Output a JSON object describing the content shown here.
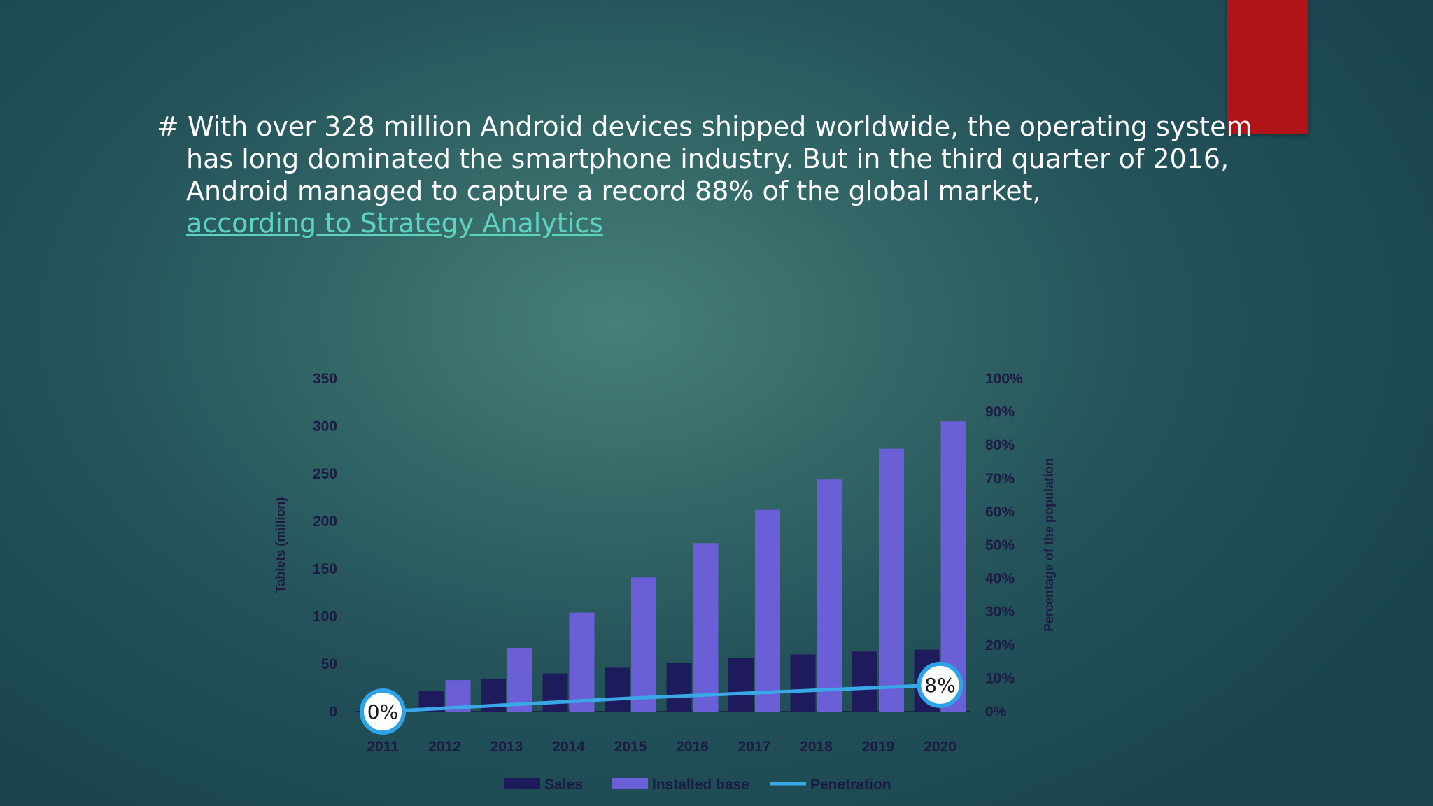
{
  "slide": {
    "bullet": "#",
    "lines": [
      "With over 328 million Android devices shipped worldwide, the operating system",
      "has long dominated the smartphone industry. But in the third quarter of 2016,",
      "Android managed to capture a record 88% of the global market,"
    ],
    "link_text": "according to Strategy Analytics",
    "accent_color": "#b01318"
  },
  "chart_data": {
    "type": "bar",
    "categories": [
      "2011",
      "2012",
      "2013",
      "2014",
      "2015",
      "2016",
      "2017",
      "2018",
      "2019",
      "2020"
    ],
    "series": [
      {
        "name": "Sales",
        "type": "bar",
        "axis": "left",
        "color": "#1e1b5c",
        "values": [
          0,
          22,
          34,
          40,
          46,
          51,
          56,
          60,
          63,
          65
        ]
      },
      {
        "name": "Installed base",
        "type": "bar",
        "axis": "left",
        "color": "#6a5fd6",
        "values": [
          0,
          33,
          67,
          104,
          141,
          177,
          212,
          244,
          276,
          305
        ]
      },
      {
        "name": "Penetration",
        "type": "line",
        "axis": "right",
        "color": "#3aa7e6",
        "values": [
          0,
          1,
          2,
          3,
          4,
          4.8,
          5.6,
          6.4,
          7.2,
          8
        ]
      }
    ],
    "ylabel": "Tablets (million)",
    "y2label": "Percentage of the population",
    "ylim": [
      0,
      350
    ],
    "y2lim": [
      0,
      100
    ],
    "yticks": [
      "0",
      "50",
      "100",
      "150",
      "200",
      "250",
      "300",
      "350"
    ],
    "y2ticks": [
      "0%",
      "10%",
      "20%",
      "30%",
      "40%",
      "50%",
      "60%",
      "70%",
      "80%",
      "90%",
      "100%"
    ],
    "annotations": [
      {
        "category": "2011",
        "text": "0%"
      },
      {
        "category": "2020",
        "text": "8%"
      }
    ],
    "legend_position": "bottom",
    "grid": false
  }
}
